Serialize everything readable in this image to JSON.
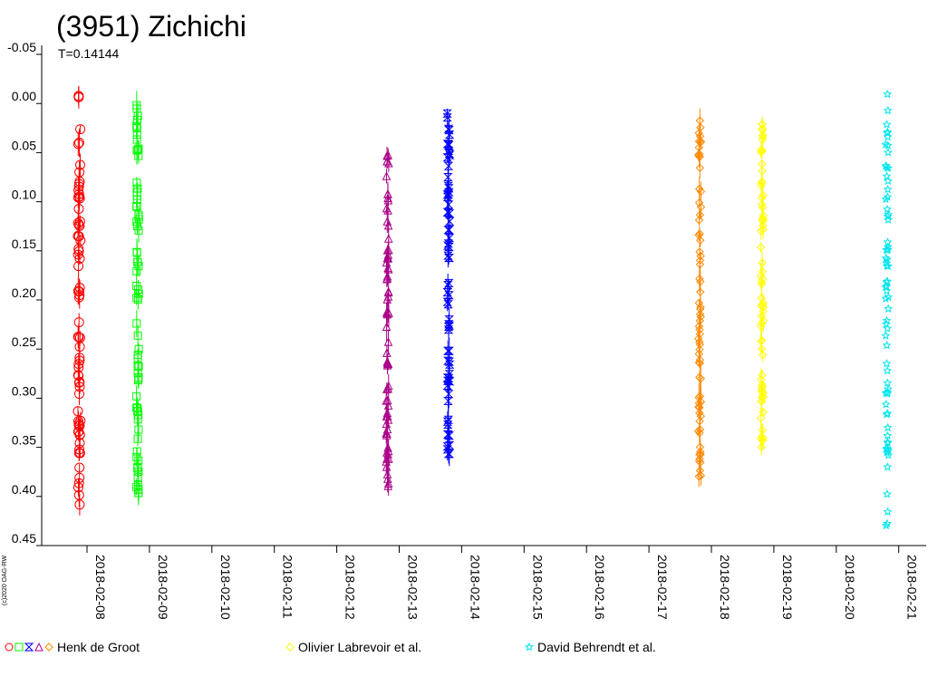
{
  "chart_data": {
    "type": "scatter",
    "title": "(3951) Zichichi",
    "subtitle": "T=0.14144",
    "xlabel": "",
    "ylabel": "",
    "x_ticks": [
      "2018-02-08",
      "2018-02-09",
      "2018-02-10",
      "2018-02-11",
      "2018-02-12",
      "2018-02-13",
      "2018-02-14",
      "2018-02-15",
      "2018-02-16",
      "2018-02-17",
      "2018-02-18",
      "2018-02-19",
      "2018-02-20",
      "2018-02-21"
    ],
    "y_ticks": [
      "-0.05",
      "0.00",
      "0.05",
      "0.10",
      "0.15",
      "0.20",
      "0.25",
      "0.30",
      "0.35",
      "0.40",
      "0.45"
    ],
    "ylim": [
      0.45,
      -0.05
    ],
    "y_inverted": true,
    "grid": false,
    "copyright": "(c)2020 OAG-RW",
    "legend_groups": [
      {
        "markers": [
          "circle",
          "square",
          "hourglass",
          "triangle",
          "diamond"
        ],
        "label": "Henk de Groot"
      },
      {
        "markers": [
          "diamond"
        ],
        "label": "Olivier Labrevoir et al."
      },
      {
        "markers": [
          "star"
        ],
        "label": "David Behrendt et al."
      }
    ],
    "series": [
      {
        "marker": "circle",
        "color": "#ff0000",
        "x_start": "2018-02-07 20:30",
        "x_end": "2018-02-07 21:30",
        "y_min": -0.01,
        "y_max": 0.41
      },
      {
        "marker": "square",
        "color": "#00ff00",
        "x_start": "2018-02-08 19:00",
        "x_end": "2018-02-08 20:00",
        "y_min": 0.0,
        "y_max": 0.4
      },
      {
        "marker": "triangle",
        "color": "#aa0088",
        "x_start": "2018-02-12 19:00",
        "x_end": "2018-02-12 20:00",
        "y_min": 0.05,
        "y_max": 0.39
      },
      {
        "marker": "hourglass",
        "color": "#0000ff",
        "x_start": "2018-02-13 18:30",
        "x_end": "2018-02-13 19:30",
        "y_min": 0.01,
        "y_max": 0.38
      },
      {
        "marker": "diamond",
        "color": "#ff8800",
        "x_start": "2018-02-17 19:00",
        "x_end": "2018-02-17 20:00",
        "y_min": 0.01,
        "y_max": 0.39
      },
      {
        "marker": "diamond",
        "color": "#ffff00",
        "x_start": "2018-02-18 19:00",
        "x_end": "2018-02-18 20:00",
        "y_min": 0.02,
        "y_max": 0.36
      },
      {
        "marker": "star",
        "color": "#00e5ee",
        "x_start": "2018-02-20 19:00",
        "x_end": "2018-02-20 20:00",
        "y_min": -0.02,
        "y_max": 0.43
      }
    ]
  }
}
